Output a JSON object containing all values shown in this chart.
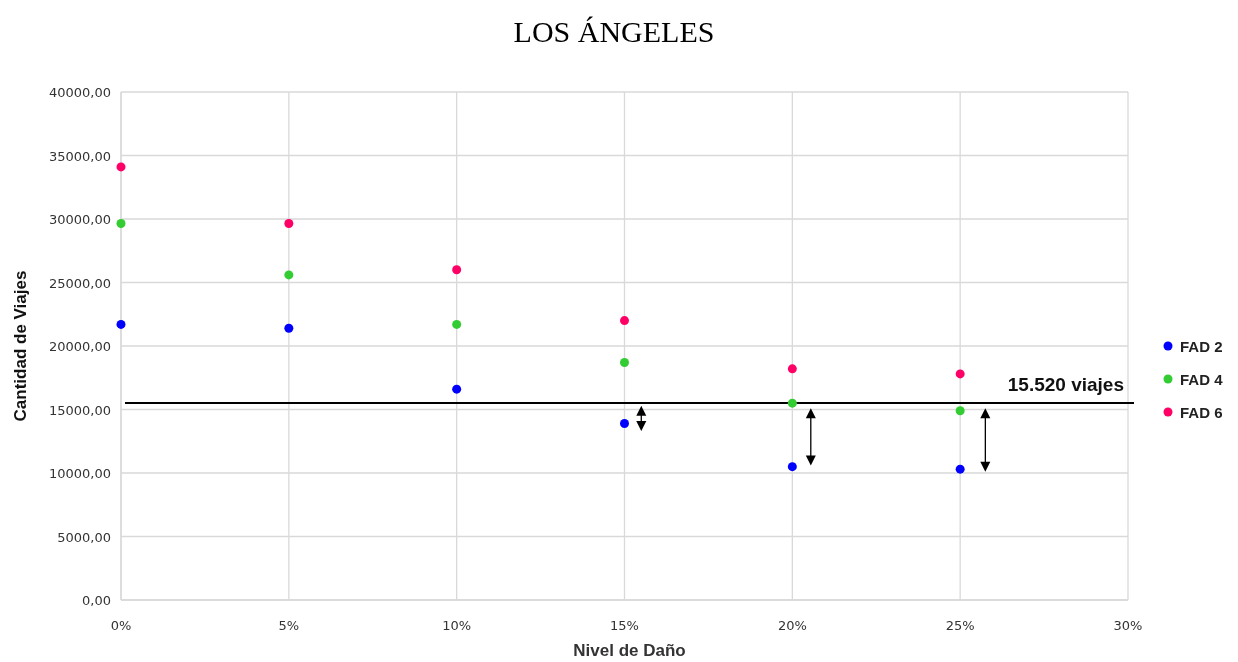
{
  "chart_data": {
    "type": "scatter",
    "title": "LOS ÁNGELES",
    "xlabel": "Nivel de Daño",
    "ylabel": "Cantidad de Viajes",
    "x": [
      0,
      5,
      10,
      15,
      20,
      25
    ],
    "series": [
      {
        "name": "FAD 2",
        "color": "#0000ff",
        "values": [
          21700,
          21400,
          16600,
          13900,
          10500,
          10300
        ]
      },
      {
        "name": "FAD 4",
        "color": "#33cc33",
        "values": [
          29650,
          25600,
          21700,
          18700,
          15500,
          14900
        ]
      },
      {
        "name": "FAD 6",
        "color": "#ff0066",
        "values": [
          34100,
          29650,
          26000,
          22000,
          18200,
          17800
        ]
      }
    ],
    "xlim": [
      0,
      30
    ],
    "xticks": [
      {
        "value": 0,
        "label": "0%"
      },
      {
        "value": 5,
        "label": "5%"
      },
      {
        "value": 10,
        "label": "10%"
      },
      {
        "value": 15,
        "label": "15%"
      },
      {
        "value": 20,
        "label": "20%"
      },
      {
        "value": 25,
        "label": "25%"
      },
      {
        "value": 30,
        "label": "30%"
      }
    ],
    "ylim": [
      0,
      40000
    ],
    "yticks": [
      {
        "value": 0,
        "label": "0,00"
      },
      {
        "value": 5000,
        "label": "5000,00"
      },
      {
        "value": 10000,
        "label": "10000,00"
      },
      {
        "value": 15000,
        "label": "15000,00"
      },
      {
        "value": 20000,
        "label": "20000,00"
      },
      {
        "value": 25000,
        "label": "25000,00"
      },
      {
        "value": 30000,
        "label": "30000,00"
      },
      {
        "value": 35000,
        "label": "35000,00"
      },
      {
        "value": 40000,
        "label": "40000,00"
      }
    ],
    "ref_lines": [
      {
        "axis": "y",
        "value": 15520,
        "label": "15.520 viajes",
        "color": "#000000"
      }
    ],
    "grid": true,
    "legend": "right",
    "marker": "circle"
  }
}
